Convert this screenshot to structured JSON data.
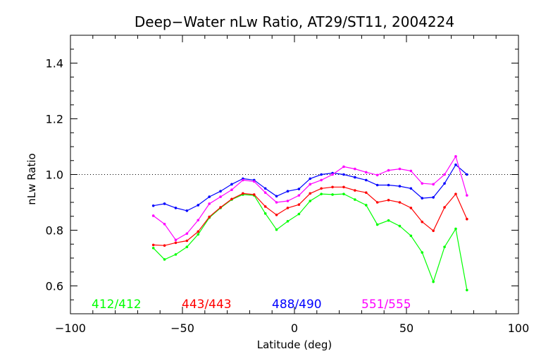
{
  "chart_data": {
    "type": "line",
    "title": "Deep−Water nLw Ratio, AT29/ST11, 2004224",
    "xlabel": "Latitude (deg)",
    "ylabel": "nLw Ratio",
    "xlim": [
      -100,
      100
    ],
    "ylim": [
      0.5,
      1.5
    ],
    "xticks": [
      -100,
      -50,
      0,
      50,
      100
    ],
    "xtick_labels": [
      "−100",
      "−50",
      "0",
      "50",
      "100"
    ],
    "yticks": [
      0.6,
      0.8,
      1.0,
      1.2,
      1.4
    ],
    "ytick_labels": [
      "0.6",
      "0.8",
      "1.0",
      "1.2",
      "1.4"
    ],
    "reference_line": 1.0,
    "grid": false,
    "legend_position": "bottom",
    "x": [
      -63,
      -58,
      -53,
      -48,
      -43,
      -38,
      -33,
      -28,
      -23,
      -18,
      -13,
      -8,
      -3,
      2,
      7,
      12,
      17,
      22,
      27,
      32,
      37,
      42,
      47,
      52,
      57,
      62,
      67,
      72,
      77
    ],
    "series": [
      {
        "name": "412/412",
        "color": "#00ff00",
        "values": [
          0.736,
          0.695,
          0.713,
          0.74,
          0.785,
          0.845,
          0.88,
          0.91,
          0.928,
          0.925,
          0.86,
          0.802,
          0.832,
          0.858,
          0.905,
          0.93,
          0.928,
          0.93,
          0.91,
          0.89,
          0.82,
          0.835,
          0.815,
          0.78,
          0.72,
          0.615,
          0.74,
          0.805,
          0.585
        ]
      },
      {
        "name": "443/443",
        "color": "#ff0000",
        "values": [
          0.747,
          0.745,
          0.755,
          0.762,
          0.795,
          0.848,
          0.882,
          0.912,
          0.932,
          0.928,
          0.885,
          0.855,
          0.88,
          0.892,
          0.932,
          0.95,
          0.955,
          0.955,
          0.943,
          0.935,
          0.9,
          0.908,
          0.9,
          0.88,
          0.83,
          0.798,
          0.882,
          0.93,
          0.84
        ]
      },
      {
        "name": "488/490",
        "color": "#0000ff",
        "values": [
          0.888,
          0.895,
          0.88,
          0.87,
          0.89,
          0.92,
          0.94,
          0.965,
          0.985,
          0.98,
          0.95,
          0.922,
          0.94,
          0.948,
          0.985,
          1.0,
          1.005,
          1.0,
          0.99,
          0.98,
          0.962,
          0.962,
          0.958,
          0.95,
          0.915,
          0.918,
          0.968,
          1.035,
          1.0
        ]
      },
      {
        "name": "551/555",
        "color": "#ff00ff",
        "values": [
          0.852,
          0.822,
          0.765,
          0.788,
          0.836,
          0.895,
          0.92,
          0.945,
          0.98,
          0.975,
          0.935,
          0.9,
          0.905,
          0.925,
          0.965,
          0.98,
          1.0,
          1.028,
          1.02,
          1.008,
          0.998,
          1.015,
          1.02,
          1.013,
          0.968,
          0.965,
          1.0,
          1.065,
          0.925
        ]
      }
    ]
  }
}
